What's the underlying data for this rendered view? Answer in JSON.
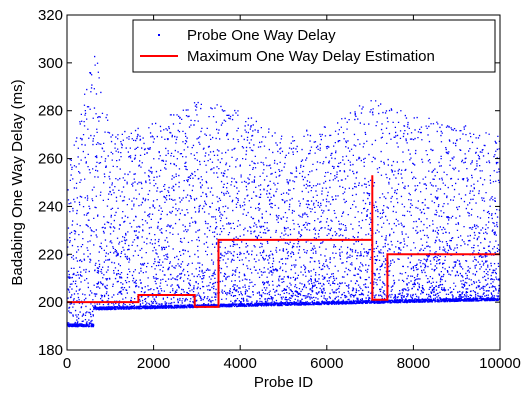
{
  "chart_data": {
    "type": "scatter",
    "xlabel": "Probe ID",
    "ylabel": "Badabing One Way Delay (ms)",
    "xlim": [
      0,
      10000
    ],
    "ylim": [
      180,
      320
    ],
    "xticks": [
      0,
      2000,
      4000,
      6000,
      8000,
      10000
    ],
    "yticks": [
      180,
      200,
      220,
      240,
      260,
      280,
      300,
      320
    ],
    "legend_position": "top-right",
    "grid": false,
    "series": [
      {
        "name": "Probe One Way Delay",
        "kind": "scatter",
        "color": "#0000ff",
        "sample_count": 7000,
        "baseline": [
          [
            0,
            190
          ],
          [
            600,
            190
          ],
          [
            600,
            197
          ],
          [
            10000,
            201
          ]
        ],
        "spread_max": [
          [
            0,
            255
          ],
          [
            600,
            310
          ],
          [
            1000,
            270
          ],
          [
            2000,
            275
          ],
          [
            3000,
            285
          ],
          [
            4000,
            280
          ],
          [
            5000,
            270
          ],
          [
            6000,
            275
          ],
          [
            7000,
            285
          ],
          [
            8000,
            280
          ],
          [
            9000,
            275
          ],
          [
            10000,
            270
          ]
        ]
      },
      {
        "name": "Maximum One Way Delay Estimation",
        "kind": "step-line",
        "color": "#ff0000",
        "points": [
          [
            0,
            200
          ],
          [
            1650,
            200
          ],
          [
            1650,
            203
          ],
          [
            2950,
            203
          ],
          [
            2950,
            198
          ],
          [
            3500,
            198
          ],
          [
            3500,
            226
          ],
          [
            7050,
            226
          ],
          [
            7050,
            253
          ],
          [
            7050,
            201
          ],
          [
            7400,
            201
          ],
          [
            7400,
            220
          ],
          [
            10000,
            220
          ]
        ]
      }
    ]
  }
}
